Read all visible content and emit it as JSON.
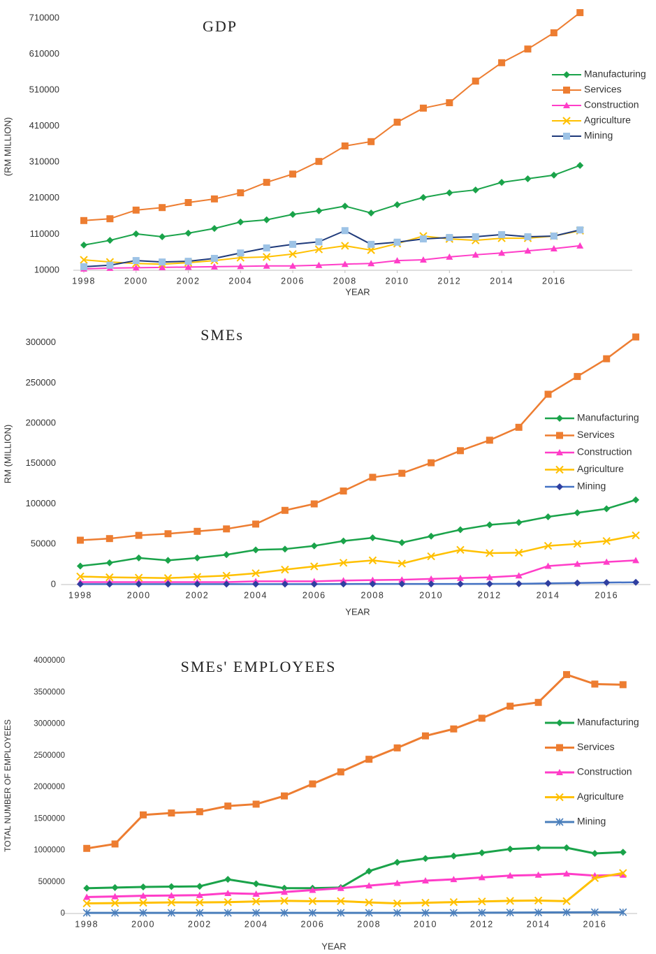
{
  "chart_data": [
    {
      "type": "line",
      "title": "GDP",
      "y_label": "(RM MILLION)",
      "x_label": "YEAR",
      "x": [
        1998,
        1999,
        2000,
        2001,
        2002,
        2003,
        2004,
        2005,
        2006,
        2007,
        2008,
        2009,
        2010,
        2011,
        2012,
        2013,
        2014,
        2015,
        2016,
        2017
      ],
      "xlim": [
        1998,
        2019
      ],
      "xticks": [
        1998,
        2000,
        2002,
        2004,
        2006,
        2008,
        2010,
        2012,
        2014,
        2016
      ],
      "ylim": [
        10000,
        730000
      ],
      "yticks": [
        10000,
        110000,
        210000,
        310000,
        410000,
        510000,
        610000,
        710000
      ],
      "grid": false,
      "legend": "right",
      "series": [
        {
          "name": "Manufacturing",
          "color": "#1aa34a",
          "marker": "diamond",
          "values": [
            80000,
            93000,
            111000,
            103000,
            113000,
            126000,
            144000,
            150000,
            165000,
            175000,
            188000,
            169000,
            192000,
            212000,
            225000,
            233000,
            254000,
            264000,
            274000,
            301000
          ]
        },
        {
          "name": "Services",
          "color": "#ed7d31",
          "marker": "square",
          "values": [
            148000,
            153000,
            177000,
            184000,
            198000,
            208000,
            225000,
            254000,
            277000,
            312000,
            355000,
            367000,
            421000,
            460000,
            475000,
            535000,
            586000,
            624000,
            669000,
            725000
          ]
        },
        {
          "name": "Construction",
          "color": "#ff3dc8",
          "marker": "triangle",
          "values": [
            14000,
            16000,
            17000,
            18000,
            19000,
            20000,
            21000,
            22000,
            22000,
            24000,
            27000,
            29000,
            37000,
            39000,
            47000,
            53000,
            58000,
            64000,
            70000,
            78000
          ]
        },
        {
          "name": "Agriculture",
          "color": "#ffc000",
          "marker": "x",
          "values": [
            39000,
            33000,
            29000,
            27000,
            31000,
            37000,
            45000,
            47000,
            55000,
            68000,
            78000,
            66000,
            84000,
            105000,
            97000,
            93000,
            99000,
            99000,
            105000,
            120000
          ]
        },
        {
          "name": "Mining",
          "color": "#1f3a7a",
          "marker": "square",
          "marker_color": "#9dc3e6",
          "values": [
            20000,
            24000,
            37000,
            33000,
            35000,
            43000,
            58000,
            72000,
            82000,
            89000,
            120000,
            82000,
            88000,
            97000,
            101000,
            103000,
            109000,
            103000,
            105000,
            122000
          ]
        }
      ]
    },
    {
      "type": "line",
      "title": "SMEs",
      "y_label": "RM (MILLION)",
      "x_label": "YEAR",
      "x": [
        1998,
        1999,
        2000,
        2001,
        2002,
        2003,
        2004,
        2005,
        2006,
        2007,
        2008,
        2009,
        2010,
        2011,
        2012,
        2013,
        2014,
        2015,
        2016,
        2017
      ],
      "xlim": [
        1997.7,
        2017.5
      ],
      "xticks": [
        1998,
        2000,
        2002,
        2004,
        2006,
        2008,
        2010,
        2012,
        2014,
        2016
      ],
      "ylim": [
        0,
        320000
      ],
      "yticks": [
        0,
        50000,
        100000,
        150000,
        200000,
        250000,
        300000
      ],
      "grid": false,
      "legend": "right",
      "series": [
        {
          "name": "Manufacturing",
          "color": "#1aa34a",
          "marker": "diamond",
          "values": [
            23000,
            27000,
            33000,
            30000,
            33000,
            37000,
            43000,
            44000,
            48000,
            54000,
            58000,
            52000,
            60000,
            68000,
            74000,
            77000,
            84000,
            89000,
            94000,
            105000
          ]
        },
        {
          "name": "Services",
          "color": "#ed7d31",
          "marker": "square",
          "values": [
            55000,
            57000,
            61000,
            63000,
            66000,
            69000,
            75000,
            92000,
            100000,
            116000,
            133000,
            138000,
            151000,
            166000,
            179000,
            195000,
            236000,
            258000,
            280000,
            307000
          ]
        },
        {
          "name": "Construction",
          "color": "#ff3dc8",
          "marker": "triangle",
          "values": [
            3000,
            3000,
            3000,
            3000,
            3000,
            3000,
            4000,
            4000,
            4000,
            5000,
            5500,
            6000,
            7000,
            8000,
            9000,
            11000,
            23000,
            25500,
            28000,
            30000
          ]
        },
        {
          "name": "Agriculture",
          "color": "#ffc000",
          "marker": "x",
          "values": [
            10000,
            9000,
            8500,
            8000,
            9500,
            11000,
            14000,
            18500,
            22500,
            27000,
            30000,
            26000,
            35000,
            43000,
            39000,
            39500,
            48000,
            50500,
            54000,
            61000
          ]
        },
        {
          "name": "Mining",
          "color": "#4472c4",
          "marker": "diamond",
          "marker_color": "#2f3fa0",
          "values": [
            500,
            500,
            500,
            500,
            500,
            500,
            500,
            500,
            500,
            700,
            800,
            800,
            800,
            800,
            900,
            1000,
            1500,
            2000,
            2500,
            2800
          ]
        }
      ]
    },
    {
      "type": "line",
      "title": "SMEs' EMPLOYEES",
      "y_label": "TOTAL NUMBER OF EMPLOYEES",
      "x_label": "YEAR",
      "x": [
        1998,
        1999,
        2000,
        2001,
        2002,
        2003,
        2004,
        2005,
        2006,
        2007,
        2008,
        2009,
        2010,
        2011,
        2012,
        2013,
        2014,
        2015,
        2016,
        2017
      ],
      "xlim": [
        1997.5,
        2017.5
      ],
      "xticks": [
        1998,
        2000,
        2002,
        2004,
        2006,
        2008,
        2010,
        2012,
        2014,
        2016
      ],
      "ylim": [
        0,
        4000000
      ],
      "yticks": [
        0,
        500000,
        1000000,
        1500000,
        2000000,
        2500000,
        3000000,
        3500000,
        4000000
      ],
      "grid": false,
      "legend": "right",
      "series": [
        {
          "name": "Manufacturing",
          "color": "#1aa34a",
          "marker": "diamond",
          "values": [
            400000,
            410000,
            420000,
            425000,
            430000,
            540000,
            470000,
            400000,
            400000,
            410000,
            670000,
            810000,
            870000,
            910000,
            960000,
            1020000,
            1040000,
            1040000,
            950000,
            970000
          ]
        },
        {
          "name": "Services",
          "color": "#ed7d31",
          "marker": "square",
          "values": [
            1030000,
            1100000,
            1560000,
            1590000,
            1610000,
            1700000,
            1730000,
            1860000,
            2050000,
            2240000,
            2440000,
            2620000,
            2810000,
            2920000,
            3090000,
            3280000,
            3340000,
            3780000,
            3630000,
            3620000
          ]
        },
        {
          "name": "Construction",
          "color": "#ff3dc8",
          "marker": "triangle",
          "values": [
            260000,
            270000,
            280000,
            285000,
            290000,
            320000,
            310000,
            340000,
            370000,
            400000,
            440000,
            480000,
            520000,
            540000,
            570000,
            600000,
            610000,
            630000,
            600000,
            610000
          ]
        },
        {
          "name": "Agriculture",
          "color": "#ffc000",
          "marker": "x",
          "values": [
            160000,
            165000,
            170000,
            175000,
            175000,
            180000,
            190000,
            200000,
            195000,
            195000,
            175000,
            160000,
            170000,
            180000,
            190000,
            200000,
            205000,
            195000,
            560000,
            640000
          ]
        },
        {
          "name": "Mining",
          "color": "#4a7ebb",
          "marker": "asterisk",
          "values": [
            10000,
            10000,
            10000,
            10000,
            10000,
            10000,
            10000,
            10000,
            10000,
            10000,
            10000,
            10000,
            10000,
            10000,
            12000,
            14000,
            16000,
            18000,
            20000,
            20000
          ]
        }
      ]
    }
  ]
}
